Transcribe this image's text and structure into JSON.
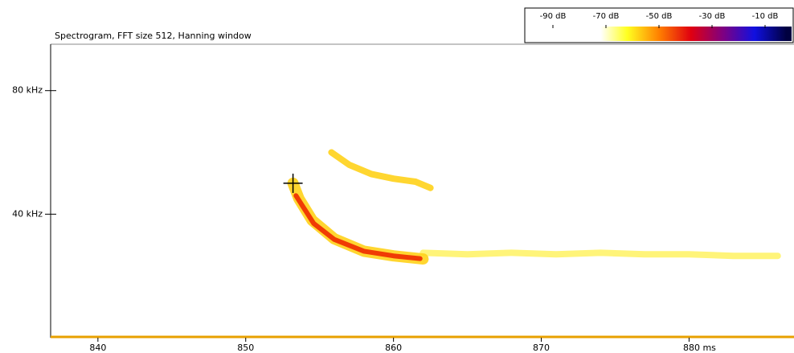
{
  "chart_data": {
    "type": "spectrogram",
    "title": "Spectrogram, FFT size 512, Hanning window",
    "xlim": [
      836.8,
      887.1
    ],
    "xticks": [
      840,
      850,
      860,
      870,
      {
        "value": 880,
        "label": "880 ms"
      }
    ],
    "ylim": [
      0,
      94.5
    ],
    "yticks": [
      {
        "value": 40,
        "label": "40 kHz"
      },
      {
        "value": 80,
        "label": "80 kHz"
      }
    ],
    "colorbar": {
      "clim": [
        -100,
        0
      ],
      "ticks": [
        {
          "value": -90,
          "label": "-90 dB"
        },
        {
          "value": -70,
          "label": "-70 dB"
        },
        {
          "value": -50,
          "label": "-50 dB"
        },
        {
          "value": -30,
          "label": "-30 dB"
        },
        {
          "value": -10,
          "label": "-10 dB"
        }
      ],
      "colormap": [
        {
          "value": -72,
          "color": "#ffffff"
        },
        {
          "value": -62,
          "color": "#ffff20"
        },
        {
          "value": -50,
          "color": "#ff8000"
        },
        {
          "value": -38,
          "color": "#e00010"
        },
        {
          "value": -26,
          "color": "#800080"
        },
        {
          "value": -14,
          "color": "#1010e0"
        },
        {
          "value": -2,
          "color": "#000040"
        }
      ]
    },
    "series": [
      {
        "color": "#fff36a",
        "width": 8,
        "x": [
          862,
          865,
          868,
          871,
          874,
          877,
          880,
          883,
          886
        ],
        "values": [
          27.5,
          27,
          27.5,
          27,
          27.5,
          27,
          27,
          26.5,
          26.5
        ]
      },
      {
        "color": "#ffd21a",
        "width": 8,
        "x": [
          855.8,
          857,
          858.5,
          860,
          861.5,
          862.5
        ],
        "values": [
          60,
          56,
          53,
          51.5,
          50.5,
          48.5
        ]
      },
      {
        "color": "#ffd21a",
        "width": 14,
        "x": [
          853.2,
          853.6,
          854.5,
          856,
          858,
          860,
          862
        ],
        "values": [
          50,
          45,
          38,
          32,
          28,
          26.5,
          25.5
        ]
      },
      {
        "color": "#ee2a00",
        "width": 6,
        "x": [
          853.4,
          853.8,
          854.6,
          856,
          858,
          860,
          861.8
        ],
        "values": [
          46,
          43,
          37,
          31.8,
          28,
          26.5,
          25.6
        ]
      }
    ],
    "cursor": {
      "x": 853.2,
      "y": 50
    }
  }
}
